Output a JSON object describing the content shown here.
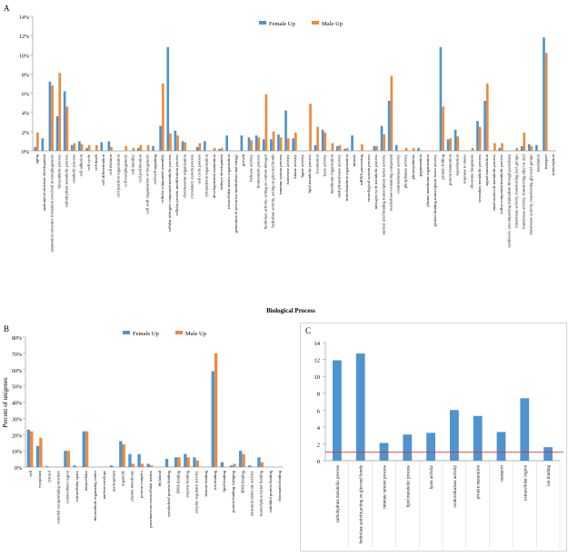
{
  "colors": {
    "female": "#4f93cf",
    "male": "#ee8a3b",
    "threshold": "#e03030",
    "axis": "#9a9a9a",
    "grid": "#d8d8d8"
  },
  "chart_data": [
    {
      "panel_label": "A",
      "type": "bar",
      "xlabel": "Biological Process",
      "ylabel": "",
      "ylim": [
        0,
        14
      ],
      "yticks": [
        "0%",
        "2%",
        "4%",
        "6%",
        "8%",
        "10%",
        "12%",
        "14%"
      ],
      "legend": "top-center",
      "categories": [
        "aging",
        "anatomical structure development",
        "anatomical structure formation involved in morphogenesis",
        "biosynthetic process",
        "carbohydrate metabolic process",
        "catabolic process",
        "cell adhesion",
        "cell cycle",
        "cell death",
        "cell differentiation",
        "cell division",
        "cell junction organization",
        "cell morphogenesis",
        "cell motility",
        "cell proliferation",
        "cell wall organization or biogenesis",
        "cell-cell signaling",
        "cellular component assembly",
        "cellular nitrogen compound metabolic process",
        "cellular protein modification process",
        "chromosome organization",
        "circulatory system process",
        "cell cycle process",
        "cytoskeleton organization",
        "developmental maturation",
        "embryo development",
        "extracellular matrix organization",
        "generation of precursor metabolites and energy",
        "growth",
        "helicase activity",
        "homeostatic process",
        "hydrolase activity, acting on carbon-nitrogen",
        "hydrolase activity, acting on glycosyl bonds",
        "immune system process",
        "isomerase activity",
        "kinase activity",
        "ligase activity",
        "lipid metabolic process",
        "locomotion",
        "lyase activity",
        "membrane organization",
        "methyltransferase activity",
        "mitochondrion organization",
        "mitosis",
        "mRNA processing",
        "neurological system process",
        "nitrogen cycle metabolic process",
        "nucleic acid binding transcription factor activity",
        "nucleobase-containing compound",
        "oxidoreductase activity",
        "phosphatase activity",
        "photosynthesis",
        "pigmentation",
        "plasma membrane organization",
        "protein binding transcription factor activity",
        "protein folding",
        "protein maturation",
        "reproduction",
        "response to stress",
        "ribosome biogenesis",
        "secondary metabolic process",
        "signal transduction",
        "small molecule metabolic process",
        "sulfur compound metabolic process",
        "symbiosis, encompassing mutualism through parasitism",
        "transferase activity, transferring acyl groups",
        "transferase activity, transferring alkyl or aryl",
        "transferase activity, transferring glycosyl groups",
        "translation",
        "transport",
        "transcription"
      ],
      "series": [
        {
          "name": "Female Up",
          "values": [
            0.4,
            1.3,
            7.2,
            3.6,
            6.2,
            0.6,
            1.0,
            0.3,
            0,
            0.9,
            1.0,
            0,
            0,
            0,
            0.3,
            0,
            0.5,
            2.6,
            10.8,
            2.1,
            1.0,
            0,
            0.4,
            1.0,
            0,
            0.2,
            1.6,
            0,
            1.6,
            1.4,
            1.6,
            1.2,
            1.2,
            1.7,
            4.2,
            1.3,
            0,
            0,
            0.6,
            2.2,
            0,
            0.5,
            0.2,
            1.6,
            0,
            0,
            0.5,
            2.6,
            5.2,
            0.6,
            0,
            0,
            0.3,
            0,
            0,
            10.8,
            1.2,
            2.2,
            0,
            0,
            3.1,
            5.2,
            0,
            0.3,
            0,
            0,
            0.5,
            0.7,
            0.6,
            11.8,
            0
          ],
          "note_only_visible": false
        },
        {
          "name": "Male Up",
          "values": [
            1.9,
            0,
            6.8,
            8.1,
            4.6,
            0.8,
            0.7,
            0.6,
            0.6,
            0,
            0.4,
            0,
            0.5,
            0.3,
            0.6,
            0.6,
            0,
            7.0,
            1.8,
            1.6,
            0.9,
            0,
            0.8,
            0,
            0.3,
            0.3,
            0,
            0,
            0,
            1.1,
            1.4,
            5.9,
            2.0,
            1.4,
            1.3,
            1.9,
            0,
            4.9,
            2.5,
            1.9,
            0.8,
            0.6,
            0.3,
            0,
            0.7,
            0,
            0.5,
            1.7,
            7.8,
            0,
            0.3,
            0.3,
            0,
            0,
            0,
            4.6,
            1.3,
            1.5,
            0,
            0.3,
            2.5,
            7.0,
            0.8,
            0.8,
            0,
            0.3,
            1.9,
            0.5,
            0,
            10.2,
            0
          ]
        }
      ]
    },
    {
      "panel_label": "B",
      "type": "bar",
      "xlabel": "",
      "ylabel": "Percent of unigenes",
      "ylim": [
        0,
        80
      ],
      "yticks": [
        "0%",
        "10%",
        "20%",
        "30%",
        "40%",
        "50%",
        "60%",
        "70%",
        "80%"
      ],
      "legend": "top-center",
      "categories": [
        "cell",
        "cytoplasm",
        "cytosol",
        "external encapsulating structure",
        "extracellular region",
        "extracellular space",
        "intracellular",
        "microtubule organizing center",
        "nuclear envelope",
        "nucleoplasm",
        "organelle",
        "plasma membrane",
        "protein complex",
        "proteinaceous extracellular matrix",
        "thylakoid",
        "cytoskeletal protein binding",
        "DNA binding",
        "enzyme binding",
        "enzyme regulator activity",
        "histone binding",
        "ion binding",
        "lipid binding",
        "protein binding, bridging",
        "RNA binding",
        "structural molecule activity",
        "transcription factor binding",
        "unfolded protein binding",
        "chromatin binding"
      ],
      "series": [
        {
          "name": "Female Up",
          "values": [
            23,
            13,
            0.5,
            0,
            10,
            1,
            22,
            0,
            0,
            1,
            16,
            8,
            8,
            2,
            0,
            5,
            6,
            8,
            6,
            0,
            59,
            3,
            1,
            10,
            1,
            6,
            0,
            0
          ]
        },
        {
          "name": "Male Up",
          "values": [
            22,
            18,
            0,
            0,
            10,
            0,
            22,
            0,
            0,
            0,
            14,
            2,
            2,
            1,
            0,
            0,
            6,
            6,
            4,
            0,
            70,
            0,
            2,
            8,
            0,
            3,
            0,
            0
          ]
        }
      ]
    },
    {
      "panel_label": "C",
      "type": "bar",
      "xlabel": "",
      "ylabel": "",
      "ylim": [
        0,
        14
      ],
      "yticks": [
        "0",
        "2",
        "4",
        "6",
        "8",
        "10",
        "12",
        "14"
      ],
      "threshold": 1,
      "categories": [
        "carbohydrate metabolic process",
        "hydrolase activity,acting on glycosyl bonds",
        "immune system process",
        "lipid metabolic process",
        "lyase activity",
        "oxidoreductase activity",
        "protein maturation",
        "transport",
        "extracellular region",
        "ion binding"
      ],
      "values": [
        11.9,
        12.7,
        2.1,
        3.1,
        3.3,
        6.0,
        5.3,
        3.4,
        7.4,
        1.6
      ]
    }
  ]
}
